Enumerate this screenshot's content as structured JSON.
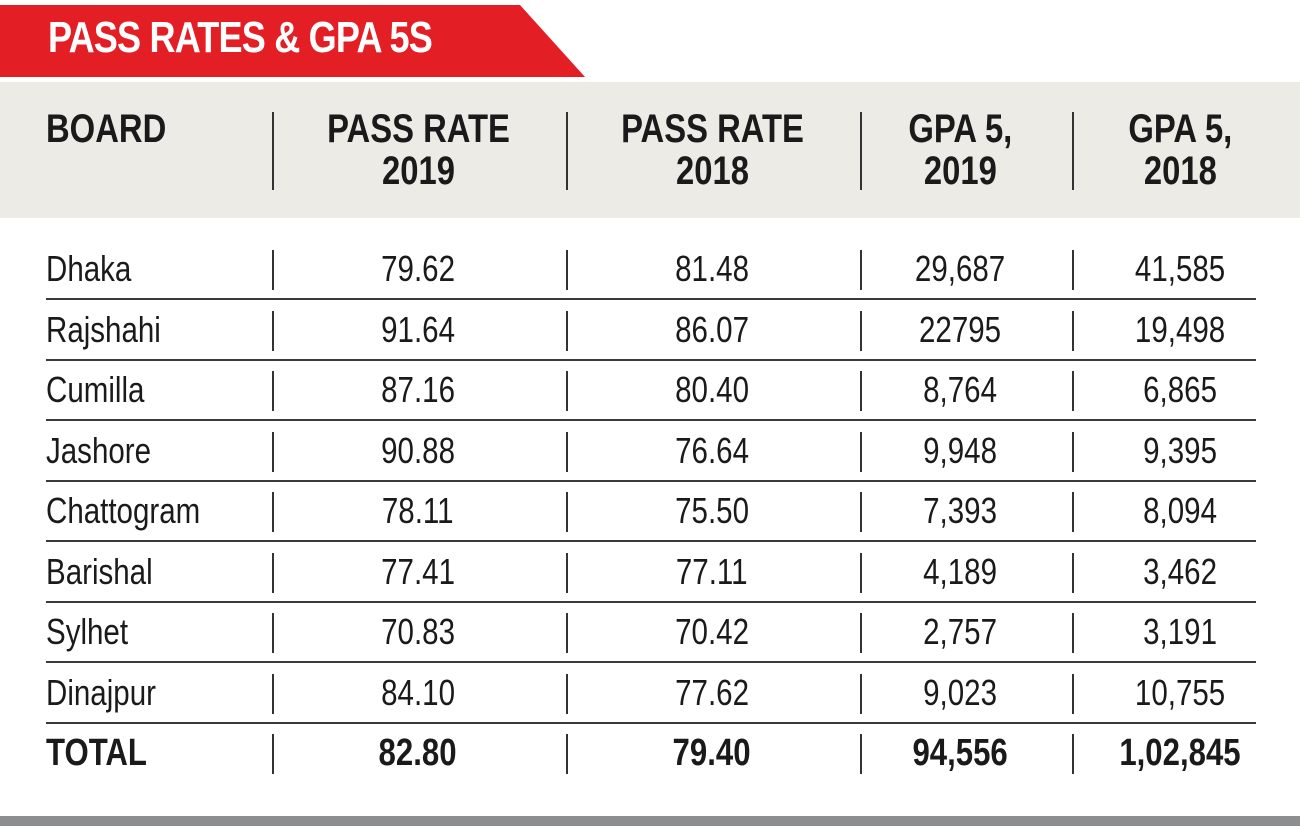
{
  "title": "PASS RATES & GPA 5S",
  "chart_data": {
    "type": "table",
    "title": "PASS RATES & GPA 5S",
    "columns": [
      "BOARD",
      "PASS RATE\n2019",
      "PASS RATE\n2018",
      "GPA 5,\n2019",
      "GPA 5,\n2018"
    ],
    "rows": [
      [
        "Dhaka",
        "79.62",
        "81.48",
        "29,687",
        "41,585"
      ],
      [
        "Rajshahi",
        "91.64",
        "86.07",
        "22795",
        "19,498"
      ],
      [
        "Cumilla",
        "87.16",
        "80.40",
        "8,764",
        "6,865"
      ],
      [
        "Jashore",
        "90.88",
        "76.64",
        "9,948",
        "9,395"
      ],
      [
        "Chattogram",
        "78.11",
        "75.50",
        "7,393",
        "8,094"
      ],
      [
        "Barishal",
        "77.41",
        "77.11",
        "4,189",
        "3,462"
      ],
      [
        "Sylhet",
        "70.83",
        "70.42",
        "2,757",
        "3,191"
      ],
      [
        "Dinajpur",
        "84.10",
        "77.62",
        "9,023",
        "10,755"
      ]
    ],
    "total": [
      "TOTAL",
      "82.80",
      "79.40",
      "94,556",
      "1,02,845"
    ]
  },
  "colors": {
    "banner": "#e31e24",
    "header_band": "#ecebe5",
    "bottom_rule": "#8d8e90",
    "text": "#1a1a1a"
  }
}
